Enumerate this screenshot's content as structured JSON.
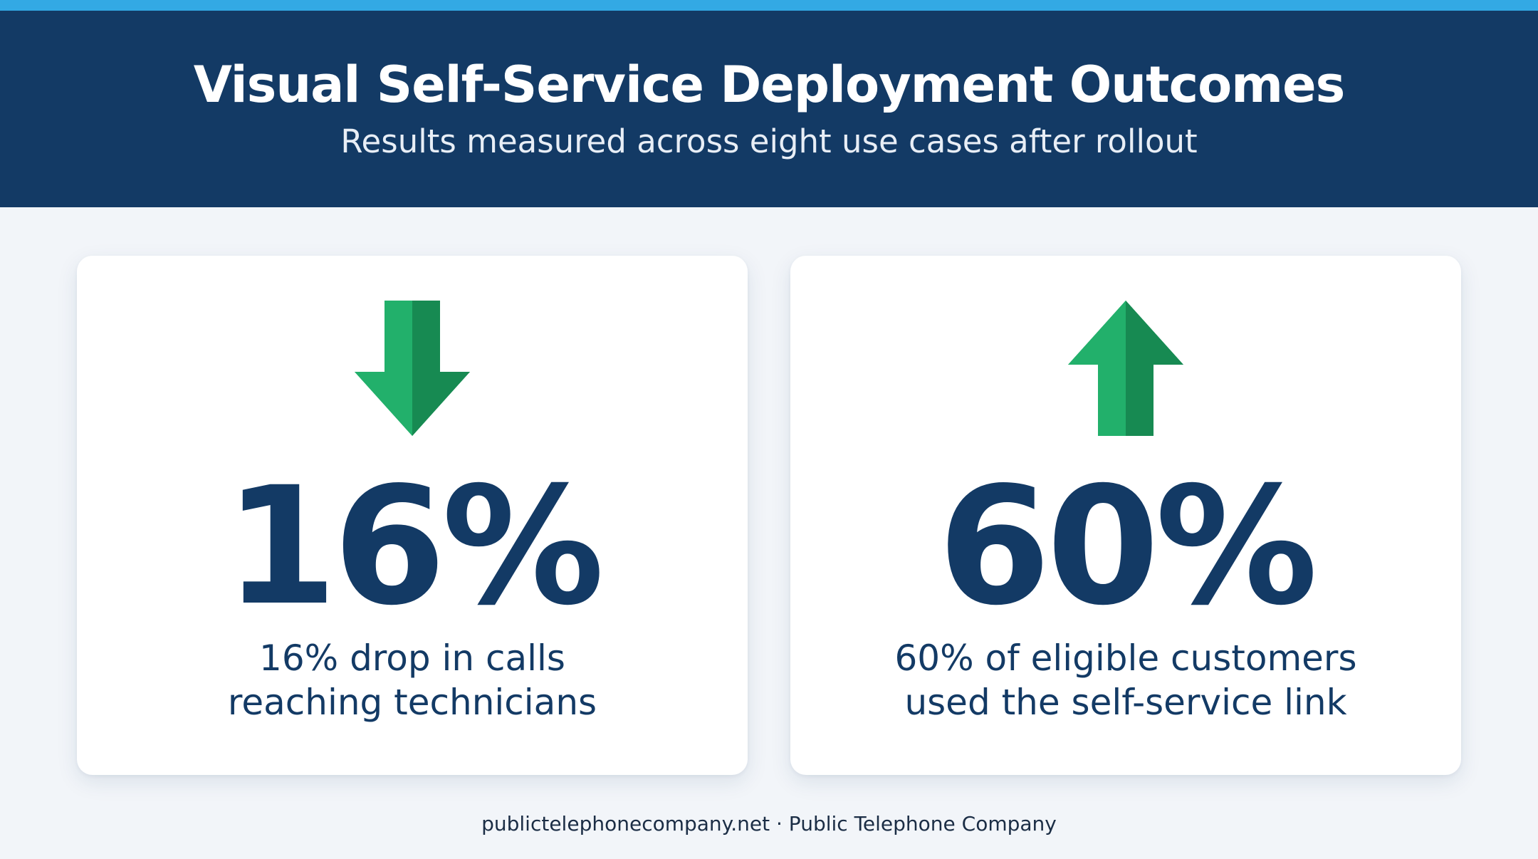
{
  "header": {
    "title": "Visual Self-Service Deployment Outcomes",
    "subtitle": "Results measured across eight use cases after rollout"
  },
  "cards": [
    {
      "icon": "arrow-down-icon",
      "direction": "down",
      "value": "16%",
      "caption_line1": "16% drop in calls",
      "caption_line2": "reaching technicians"
    },
    {
      "icon": "arrow-up-icon",
      "direction": "up",
      "value": "60%",
      "caption_line1": "60% of eligible customers",
      "caption_line2": "used the self-service link"
    }
  ],
  "footer": {
    "text": "publictelephonecompany.net · Public Telephone Company"
  },
  "colors": {
    "accent_stripe": "#33a9e4",
    "header_bg": "#133a65",
    "arrow_green": "#1fa463",
    "arrow_green_dark": "#178a52",
    "text_navy": "#133a65"
  }
}
